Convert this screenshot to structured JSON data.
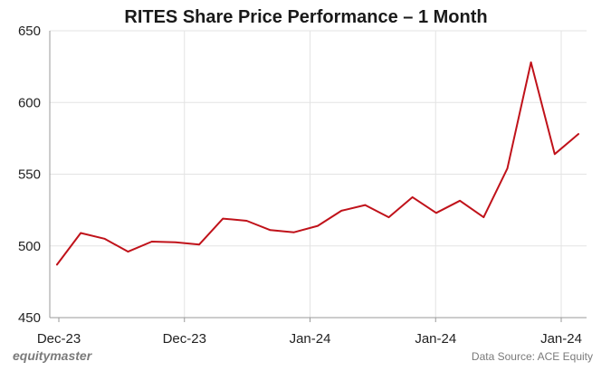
{
  "chart_data": {
    "type": "line",
    "title": "RITES Share Price Performance  – 1 Month",
    "xlabel": "",
    "ylabel": "",
    "ylim": [
      450,
      650
    ],
    "yticks": [
      450,
      500,
      550,
      600,
      650
    ],
    "xtick_labels": [
      "Dec-23",
      "Dec-23",
      "Jan-24",
      "Jan-24",
      "Jan-24"
    ],
    "grid": true,
    "legend": "none",
    "series": [
      {
        "color": "#c0121a",
        "values": [
          487,
          509,
          505,
          496,
          503,
          502.5,
          501,
          519,
          517.5,
          511,
          509.5,
          514,
          524.5,
          528.5,
          520,
          534,
          523,
          531.5,
          520,
          554,
          628,
          564,
          578
        ]
      }
    ]
  },
  "footer": {
    "brand": "equitymaster",
    "source": "Data Source: ACE Equity"
  }
}
